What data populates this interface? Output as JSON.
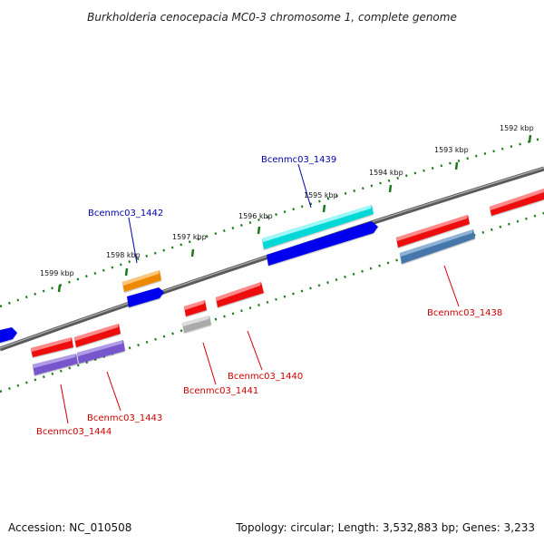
{
  "title": "Burkholderia cenocepacia MC0-3 chromosome 1, complete genome",
  "footer": {
    "accession": "Accession: NC_010508",
    "summary": "Topology: circular; Length: 3,532,883 bp; Genes: 3,233"
  },
  "scale_labels": [
    "1592 kbp",
    "1593 kbp",
    "1594 kbp",
    "1595 kbp",
    "1596 kbp",
    "1597 kbp",
    "1598 kbp",
    "1599 kbp"
  ],
  "gene_labels": {
    "g1439": "Bcenmc03_1439",
    "g1442": "Bcenmc03_1442",
    "g1438": "Bcenmc03_1438",
    "g1440": "Bcenmc03_1440",
    "g1441": "Bcenmc03_1441",
    "g1443": "Bcenmc03_1443",
    "g1444": "Bcenmc03_1444"
  },
  "colors": {
    "forward_label": "#0000aa",
    "reverse_label": "#cc0000",
    "backbone": "#777777",
    "tick": "#1a7a1a",
    "red": "#ee1111",
    "blue": "#0000ee",
    "cyan": "#00e0e0",
    "orange": "#ee8800",
    "steel": "#4477aa",
    "purple": "#7755cc",
    "gray": "#aaaaaa"
  }
}
